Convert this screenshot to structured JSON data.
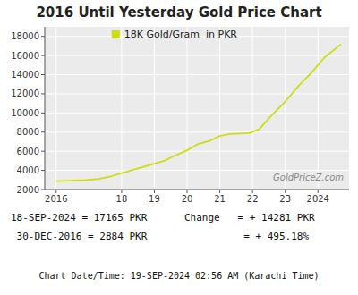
{
  "chart_data": {
    "type": "line",
    "title": "2016 Until Yesterday Gold Price Chart",
    "x": [
      2016.0,
      2016.4,
      2016.9,
      2017.3,
      2017.7,
      2018.1,
      2018.5,
      2018.9,
      2019.3,
      2019.6,
      2020.0,
      2020.3,
      2020.7,
      2021.0,
      2021.3,
      2021.6,
      2021.9,
      2022.2,
      2022.6,
      2023.0,
      2023.4,
      2023.8,
      2024.2,
      2024.7
    ],
    "series": [
      {
        "name": "18K Gold/Gram  in PKR",
        "color": "#ccdd11",
        "values": [
          2884,
          2920,
          2980,
          3100,
          3400,
          3800,
          4200,
          4600,
          5000,
          5500,
          6100,
          6700,
          7100,
          7600,
          7800,
          7850,
          7900,
          8300,
          9800,
          11200,
          12800,
          14200,
          15800,
          17165
        ]
      }
    ],
    "xlim": [
      2015.65,
      2024.95
    ],
    "ylim": [
      2000,
      19000
    ],
    "yticks": [
      2000,
      4000,
      6000,
      8000,
      10000,
      12000,
      14000,
      16000,
      18000
    ],
    "xticks": [
      2016,
      {
        "value": 2018,
        "label": "18"
      },
      {
        "value": 2019,
        "label": "19"
      },
      {
        "value": 2020,
        "label": "20"
      },
      {
        "value": 2021,
        "label": "21"
      },
      {
        "value": 2022,
        "label": "22"
      },
      {
        "value": 2023,
        "label": "23"
      },
      2024
    ],
    "grid": true,
    "legend": "top",
    "annotations": [
      "GoldPriceZ.com",
      "18-SEP-2024 = 17165 PKR",
      " 30-DEC-2016 = 2884 PKR",
      "Change   = + 14281 PKR",
      "          = + 495.18%",
      "Chart Date/Time: 19-SEP-2024 02:56 AM (Karachi Time)"
    ]
  }
}
